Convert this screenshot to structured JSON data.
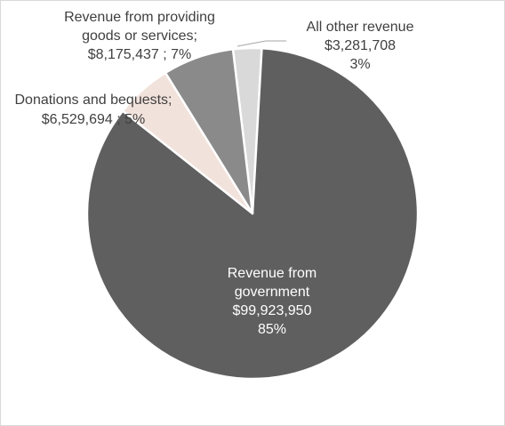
{
  "chart_data": {
    "type": "pie",
    "title": "",
    "slices": [
      {
        "category": "Revenue from government",
        "value": 99923950,
        "percent": 85,
        "color": "#5f5f5f",
        "label_lines": [
          "Revenue from",
          "government",
          "$99,923,950",
          "85%"
        ],
        "label_color": "#ffffff"
      },
      {
        "category": "Donations and bequests",
        "value": 6529694,
        "percent": 5,
        "color": "#f2e2dc",
        "label_lines": [
          "Donations and bequests;",
          "$6,529,694 ; 5%"
        ],
        "label_color": "#404040"
      },
      {
        "category": "Revenue from providing goods or services",
        "value": 8175437,
        "percent": 7,
        "color": "#8a8a8a",
        "label_lines": [
          "Revenue from providing",
          "goods or services;",
          "$8,175,437 ; 7%"
        ],
        "label_color": "#404040"
      },
      {
        "category": "All other revenue",
        "value": 3281708,
        "percent": 3,
        "color": "#d9d9d9",
        "label_lines": [
          "All other revenue",
          "$3,281,708",
          "3%"
        ],
        "label_color": "#404040"
      }
    ],
    "legend": "none"
  }
}
